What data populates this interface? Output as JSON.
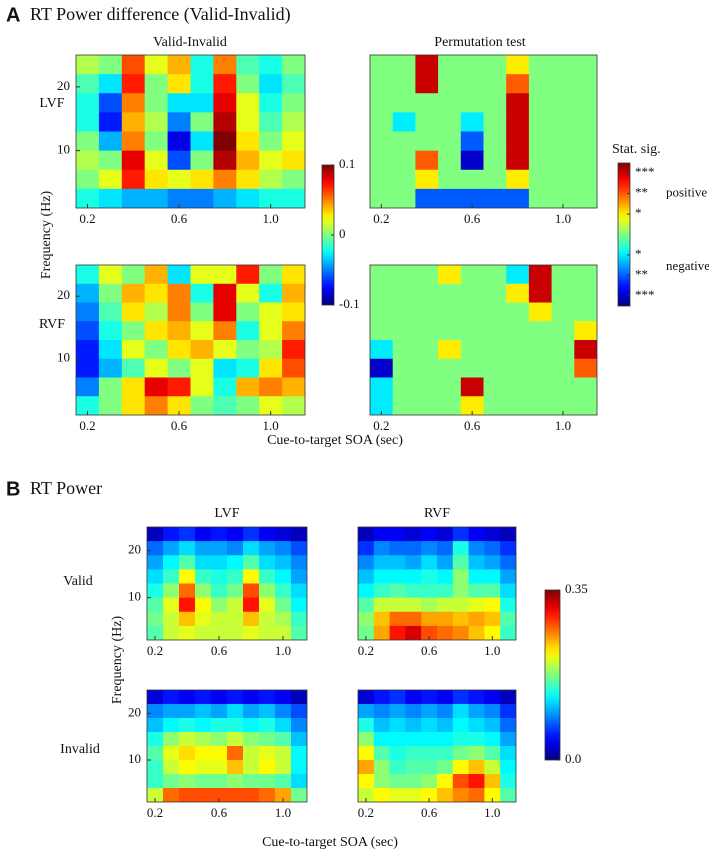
{
  "panels": [
    {
      "label": "A",
      "title": "RT Power difference (Valid-Invalid)",
      "column_titles": [
        "Valid-Invalid",
        "Permutation test"
      ],
      "row_labels": [
        "LVF",
        "RVF"
      ],
      "ylabel": "Frequency (Hz)",
      "xlabel": "Cue-to-target SOA (sec)",
      "colorbars": [
        {
          "clim": [
            -0.1,
            0.1
          ],
          "ticks": [
            0.1,
            0,
            -0.1
          ]
        },
        {
          "title": "Stat. sig.",
          "clim": [
            -3.5,
            3.5
          ],
          "ticks": [
            {
              "value": 3,
              "label": "***"
            },
            {
              "value": 2,
              "label": "**"
            },
            {
              "value": 1,
              "label": "*"
            },
            {
              "value": -1,
              "label": "*"
            },
            {
              "value": -2,
              "label": "**"
            },
            {
              "value": -3,
              "label": "***"
            }
          ],
          "annotations": [
            "positive",
            "negative"
          ]
        }
      ]
    },
    {
      "label": "B",
      "title": "RT Power",
      "column_titles": [
        "LVF",
        "RVF"
      ],
      "row_labels": [
        "Valid",
        "Invalid"
      ],
      "ylabel": "Frequency (Hz)",
      "xlabel": "Cue-to-target SOA (sec)",
      "colorbars": [
        {
          "clim": [
            0,
            0.35
          ],
          "ticks": [
            0.35,
            {
              "value": 0,
              "label": "0.0"
            }
          ]
        }
      ]
    }
  ],
  "chart_data": [
    {
      "type": "heatmap",
      "colormap": "jet",
      "clim": [
        -0.1,
        0.1
      ],
      "xlim": [
        0.15,
        1.15
      ],
      "ylim": [
        1,
        25
      ],
      "xticks": [
        0.2,
        0.6,
        {
          "value": 1,
          "label": "1.0"
        }
      ],
      "yticks": [
        10,
        20
      ],
      "x": [
        0.2,
        0.3,
        0.4,
        0.5,
        0.6,
        0.7,
        0.8,
        0.9,
        1.0,
        1.1
      ],
      "y": [
        23.5,
        20.5,
        17.5,
        14.5,
        11.5,
        8.5,
        5.5,
        2.5
      ],
      "z": [
        [
          0.01,
          0.0,
          0.06,
          0.02,
          0.04,
          -0.02,
          0.05,
          -0.01,
          -0.02,
          0.0
        ],
        [
          -0.01,
          -0.03,
          0.07,
          0.0,
          0.03,
          -0.02,
          0.07,
          0.0,
          -0.03,
          -0.01
        ],
        [
          -0.02,
          -0.06,
          0.05,
          0.0,
          -0.03,
          -0.03,
          0.08,
          0.02,
          -0.02,
          0.0
        ],
        [
          -0.02,
          -0.07,
          0.04,
          0.01,
          -0.05,
          0.0,
          0.09,
          0.02,
          -0.01,
          0.01
        ],
        [
          0.0,
          -0.04,
          0.05,
          0.0,
          -0.08,
          -0.03,
          0.1,
          0.03,
          0.0,
          0.02
        ],
        [
          0.01,
          0.0,
          0.08,
          0.02,
          -0.06,
          0.0,
          0.09,
          0.04,
          0.02,
          0.03
        ],
        [
          0.0,
          0.02,
          0.07,
          0.03,
          0.02,
          0.03,
          0.05,
          0.03,
          0.01,
          0.0
        ],
        [
          -0.02,
          -0.03,
          -0.04,
          -0.04,
          -0.05,
          -0.05,
          -0.04,
          -0.03,
          -0.02,
          -0.02
        ]
      ]
    },
    {
      "type": "heatmap",
      "colormap": "jet",
      "clim": [
        -3.5,
        3.5
      ],
      "xlim": [
        0.15,
        1.15
      ],
      "ylim": [
        1,
        25
      ],
      "xticks": [
        0.2,
        0.6,
        {
          "value": 1,
          "label": "1.0"
        }
      ],
      "x": [
        0.2,
        0.3,
        0.4,
        0.5,
        0.6,
        0.7,
        0.8,
        0.9,
        1.0,
        1.1
      ],
      "y": [
        23.5,
        20.5,
        17.5,
        14.5,
        11.5,
        8.5,
        5.5,
        2.5
      ],
      "z": [
        [
          0,
          0,
          3,
          0,
          0,
          0,
          1,
          0,
          0,
          0
        ],
        [
          0,
          0,
          3,
          0,
          0,
          0,
          2,
          0,
          0,
          0
        ],
        [
          0,
          0,
          0,
          0,
          0,
          0,
          3,
          0,
          0,
          0
        ],
        [
          0,
          -1,
          0,
          0,
          -1,
          0,
          3,
          0,
          0,
          0
        ],
        [
          0,
          0,
          0,
          0,
          -2,
          0,
          3,
          0,
          0,
          0
        ],
        [
          0,
          0,
          2,
          0,
          -3,
          0,
          3,
          0,
          0,
          0
        ],
        [
          0,
          0,
          1,
          0,
          0,
          0,
          1,
          0,
          0,
          0
        ],
        [
          0,
          0,
          -2,
          -2,
          -2,
          -2,
          -2,
          0,
          0,
          0
        ]
      ]
    },
    {
      "type": "heatmap",
      "colormap": "jet",
      "clim": [
        -0.1,
        0.1
      ],
      "xlim": [
        0.15,
        1.15
      ],
      "ylim": [
        1,
        25
      ],
      "xticks": [
        0.2,
        0.6,
        {
          "value": 1,
          "label": "1.0"
        }
      ],
      "yticks": [
        10,
        20
      ],
      "x": [
        0.2,
        0.3,
        0.4,
        0.5,
        0.6,
        0.7,
        0.8,
        0.9,
        1.0,
        1.1
      ],
      "y": [
        23.5,
        20.5,
        17.5,
        14.5,
        11.5,
        8.5,
        5.5,
        2.5
      ],
      "z": [
        [
          -0.02,
          0.02,
          0.0,
          0.04,
          -0.03,
          0.02,
          0.02,
          0.07,
          0.0,
          0.03
        ],
        [
          -0.04,
          0.0,
          0.04,
          0.03,
          0.05,
          -0.02,
          0.08,
          0.02,
          -0.02,
          0.04
        ],
        [
          -0.05,
          -0.01,
          0.03,
          0.01,
          0.05,
          0.0,
          0.08,
          0.0,
          0.02,
          0.03
        ],
        [
          -0.06,
          -0.02,
          0.0,
          0.03,
          0.04,
          0.02,
          0.05,
          -0.02,
          0.02,
          0.05
        ],
        [
          -0.07,
          -0.03,
          0.02,
          0.0,
          0.03,
          0.04,
          0.02,
          0.0,
          0.01,
          0.07
        ],
        [
          -0.07,
          -0.04,
          -0.01,
          0.02,
          0.0,
          0.02,
          -0.03,
          -0.02,
          0.03,
          0.06
        ],
        [
          -0.05,
          0.0,
          0.03,
          0.08,
          0.07,
          0.02,
          -0.02,
          0.04,
          0.05,
          0.04
        ],
        [
          -0.02,
          0.0,
          0.03,
          0.05,
          0.03,
          0.0,
          -0.01,
          0.0,
          0.02,
          0.01
        ]
      ]
    },
    {
      "type": "heatmap",
      "colormap": "jet",
      "clim": [
        -3.5,
        3.5
      ],
      "xlim": [
        0.15,
        1.15
      ],
      "ylim": [
        1,
        25
      ],
      "xticks": [
        0.2,
        0.6,
        {
          "value": 1,
          "label": "1.0"
        }
      ],
      "x": [
        0.2,
        0.3,
        0.4,
        0.5,
        0.6,
        0.7,
        0.8,
        0.9,
        1.0,
        1.1
      ],
      "y": [
        23.5,
        20.5,
        17.5,
        14.5,
        11.5,
        8.5,
        5.5,
        2.5
      ],
      "z": [
        [
          0,
          0,
          0,
          1,
          0,
          0,
          -1,
          3,
          0,
          0
        ],
        [
          0,
          0,
          0,
          0,
          0,
          0,
          1,
          3,
          0,
          0
        ],
        [
          0,
          0,
          0,
          0,
          0,
          0,
          0,
          1,
          0,
          0
        ],
        [
          0,
          0,
          0,
          0,
          0,
          0,
          0,
          0,
          0,
          1
        ],
        [
          -1,
          0,
          0,
          1,
          0,
          0,
          0,
          0,
          0,
          3
        ],
        [
          -3,
          0,
          0,
          0,
          0,
          0,
          0,
          0,
          0,
          2
        ],
        [
          -1,
          0,
          0,
          0,
          3,
          0,
          0,
          0,
          0,
          0
        ],
        [
          -1,
          0,
          0,
          0,
          1,
          0,
          0,
          0,
          0,
          0
        ]
      ]
    },
    {
      "type": "heatmap",
      "colormap": "jet",
      "clim": [
        0,
        0.35
      ],
      "xlim": [
        0.15,
        1.15
      ],
      "ylim": [
        1,
        25
      ],
      "xticks": [
        0.2,
        0.6,
        {
          "value": 1,
          "label": "1.0"
        }
      ],
      "yticks": [
        10,
        20
      ],
      "x": [
        0.2,
        0.3,
        0.4,
        0.5,
        0.6,
        0.7,
        0.8,
        0.9,
        1.0,
        1.1
      ],
      "y": [
        23.5,
        20.5,
        17.5,
        14.5,
        11.5,
        8.5,
        5.5,
        2.5
      ],
      "z": [
        [
          0.02,
          0.05,
          0.06,
          0.04,
          0.05,
          0.04,
          0.06,
          0.04,
          0.03,
          0.02
        ],
        [
          0.08,
          0.1,
          0.12,
          0.1,
          0.1,
          0.09,
          0.12,
          0.1,
          0.09,
          0.07
        ],
        [
          0.1,
          0.13,
          0.16,
          0.12,
          0.12,
          0.13,
          0.16,
          0.12,
          0.11,
          0.09
        ],
        [
          0.12,
          0.15,
          0.22,
          0.15,
          0.14,
          0.15,
          0.22,
          0.15,
          0.13,
          0.1
        ],
        [
          0.14,
          0.18,
          0.27,
          0.18,
          0.15,
          0.17,
          0.28,
          0.18,
          0.15,
          0.12
        ],
        [
          0.16,
          0.21,
          0.3,
          0.22,
          0.18,
          0.2,
          0.3,
          0.21,
          0.17,
          0.13
        ],
        [
          0.17,
          0.2,
          0.24,
          0.21,
          0.2,
          0.2,
          0.24,
          0.2,
          0.19,
          0.15
        ],
        [
          0.16,
          0.2,
          0.21,
          0.2,
          0.2,
          0.2,
          0.21,
          0.2,
          0.2,
          0.16
        ]
      ]
    },
    {
      "type": "heatmap",
      "colormap": "jet",
      "clim": [
        0,
        0.35
      ],
      "xlim": [
        0.15,
        1.15
      ],
      "ylim": [
        1,
        25
      ],
      "xticks": [
        0.2,
        0.6,
        {
          "value": 1,
          "label": "1.0"
        }
      ],
      "x": [
        0.2,
        0.3,
        0.4,
        0.5,
        0.6,
        0.7,
        0.8,
        0.9,
        1.0,
        1.1
      ],
      "y": [
        23.5,
        20.5,
        17.5,
        14.5,
        11.5,
        8.5,
        5.5,
        2.5
      ],
      "z": [
        [
          0.02,
          0.04,
          0.04,
          0.03,
          0.04,
          0.03,
          0.06,
          0.04,
          0.03,
          0.02
        ],
        [
          0.06,
          0.09,
          0.08,
          0.08,
          0.09,
          0.08,
          0.14,
          0.09,
          0.08,
          0.06
        ],
        [
          0.09,
          0.11,
          0.11,
          0.1,
          0.12,
          0.1,
          0.16,
          0.11,
          0.1,
          0.08
        ],
        [
          0.11,
          0.13,
          0.13,
          0.13,
          0.14,
          0.13,
          0.18,
          0.13,
          0.13,
          0.1
        ],
        [
          0.13,
          0.15,
          0.16,
          0.15,
          0.15,
          0.15,
          0.18,
          0.16,
          0.16,
          0.12
        ],
        [
          0.16,
          0.2,
          0.2,
          0.2,
          0.19,
          0.2,
          0.2,
          0.21,
          0.22,
          0.14
        ],
        [
          0.18,
          0.24,
          0.27,
          0.27,
          0.25,
          0.25,
          0.24,
          0.25,
          0.24,
          0.16
        ],
        [
          0.17,
          0.25,
          0.3,
          0.32,
          0.28,
          0.27,
          0.26,
          0.24,
          0.22,
          0.15
        ]
      ]
    },
    {
      "type": "heatmap",
      "colormap": "jet",
      "clim": [
        0,
        0.35
      ],
      "xlim": [
        0.15,
        1.15
      ],
      "ylim": [
        1,
        25
      ],
      "xticks": [
        0.2,
        0.6,
        {
          "value": 1,
          "label": "1.0"
        }
      ],
      "yticks": [
        10,
        20
      ],
      "x": [
        0.2,
        0.3,
        0.4,
        0.5,
        0.6,
        0.7,
        0.8,
        0.9,
        1.0,
        1.1
      ],
      "y": [
        23.5,
        20.5,
        17.5,
        14.5,
        11.5,
        8.5,
        5.5,
        2.5
      ],
      "z": [
        [
          0.03,
          0.05,
          0.04,
          0.05,
          0.04,
          0.05,
          0.04,
          0.05,
          0.04,
          0.02
        ],
        [
          0.09,
          0.1,
          0.1,
          0.11,
          0.1,
          0.12,
          0.1,
          0.11,
          0.09,
          0.07
        ],
        [
          0.11,
          0.13,
          0.14,
          0.13,
          0.14,
          0.14,
          0.13,
          0.14,
          0.12,
          0.09
        ],
        [
          0.14,
          0.18,
          0.2,
          0.19,
          0.18,
          0.2,
          0.18,
          0.17,
          0.16,
          0.11
        ],
        [
          0.16,
          0.21,
          0.23,
          0.22,
          0.22,
          0.27,
          0.2,
          0.21,
          0.2,
          0.13
        ],
        [
          0.15,
          0.2,
          0.22,
          0.21,
          0.21,
          0.24,
          0.2,
          0.22,
          0.2,
          0.13
        ],
        [
          0.15,
          0.17,
          0.18,
          0.17,
          0.17,
          0.18,
          0.17,
          0.17,
          0.16,
          0.12
        ],
        [
          0.2,
          0.27,
          0.28,
          0.28,
          0.28,
          0.28,
          0.28,
          0.27,
          0.25,
          0.17
        ]
      ]
    },
    {
      "type": "heatmap",
      "colormap": "jet",
      "clim": [
        0,
        0.35
      ],
      "xlim": [
        0.15,
        1.15
      ],
      "ylim": [
        1,
        25
      ],
      "xticks": [
        0.2,
        0.6,
        {
          "value": 1,
          "label": "1.0"
        }
      ],
      "x": [
        0.2,
        0.3,
        0.4,
        0.5,
        0.6,
        0.7,
        0.8,
        0.9,
        1.0,
        1.1
      ],
      "y": [
        23.5,
        20.5,
        17.5,
        14.5,
        11.5,
        8.5,
        5.5,
        2.5
      ],
      "z": [
        [
          0.03,
          0.05,
          0.06,
          0.04,
          0.05,
          0.04,
          0.06,
          0.05,
          0.04,
          0.02
        ],
        [
          0.1,
          0.09,
          0.1,
          0.09,
          0.1,
          0.09,
          0.12,
          0.1,
          0.09,
          0.06
        ],
        [
          0.14,
          0.11,
          0.12,
          0.11,
          0.12,
          0.11,
          0.13,
          0.12,
          0.11,
          0.08
        ],
        [
          0.18,
          0.13,
          0.13,
          0.13,
          0.13,
          0.13,
          0.14,
          0.14,
          0.13,
          0.1
        ],
        [
          0.22,
          0.16,
          0.14,
          0.15,
          0.15,
          0.15,
          0.17,
          0.18,
          0.16,
          0.12
        ],
        [
          0.25,
          0.18,
          0.15,
          0.16,
          0.16,
          0.17,
          0.22,
          0.24,
          0.2,
          0.13
        ],
        [
          0.22,
          0.18,
          0.17,
          0.17,
          0.18,
          0.22,
          0.28,
          0.3,
          0.24,
          0.14
        ],
        [
          0.2,
          0.22,
          0.21,
          0.21,
          0.22,
          0.24,
          0.26,
          0.27,
          0.22,
          0.16
        ]
      ]
    }
  ]
}
